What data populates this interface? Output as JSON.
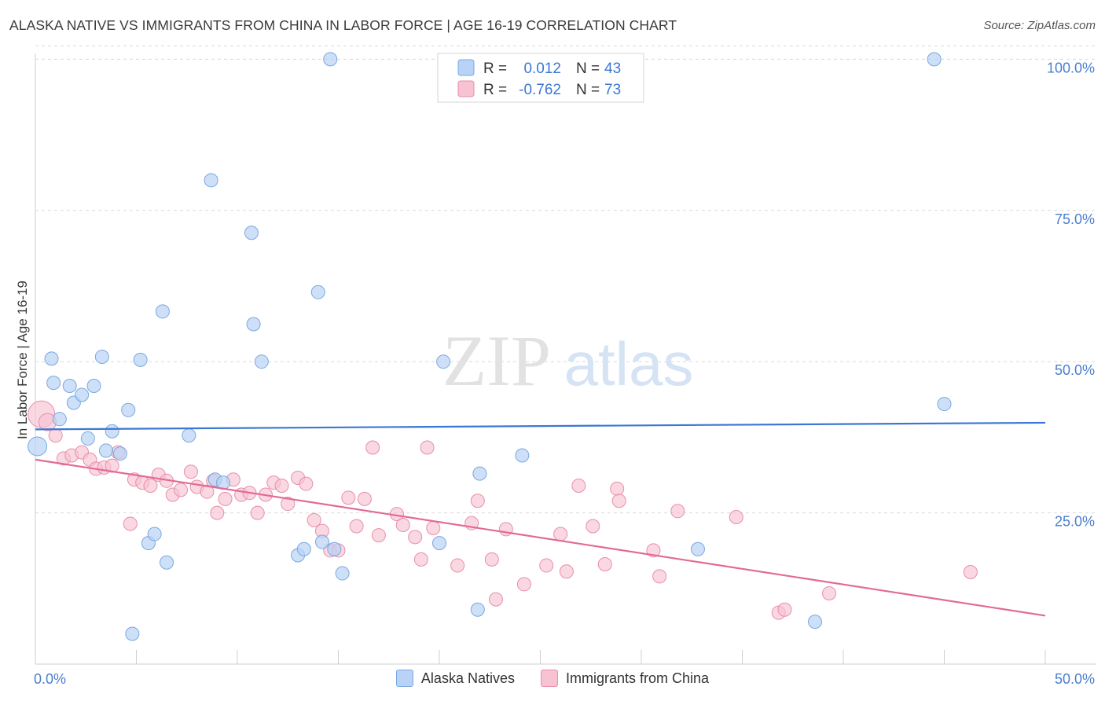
{
  "header": {
    "title": "ALASKA NATIVE VS IMMIGRANTS FROM CHINA IN LABOR FORCE | AGE 16-19 CORRELATION CHART",
    "source": "Source: ZipAtlas.com"
  },
  "watermark": {
    "zip": "ZIP",
    "atlas": "atlas"
  },
  "legend_top": {
    "rows": [
      {
        "r_label": "R =",
        "r_value": "0.012",
        "n_label": "N =",
        "n_value": "43"
      },
      {
        "r_label": "R =",
        "r_value": "-0.762",
        "n_label": "N =",
        "n_value": "73"
      }
    ]
  },
  "colors": {
    "blue_fill": "#b8d3f5",
    "blue_stroke": "#7aa8e0",
    "blue_line": "#3a78d4",
    "pink_fill": "#f7c3d3",
    "pink_stroke": "#e88eab",
    "pink_line": "#e26a95",
    "axis_text": "#4a7fcf",
    "grid": "#d9d9d9"
  },
  "chart_data": {
    "type": "scatter",
    "title": "ALASKA NATIVE VS IMMIGRANTS FROM CHINA IN LABOR FORCE | AGE 16-19 CORRELATION CHART",
    "xlabel": "",
    "ylabel": "In Labor Force | Age 16-19",
    "xlim": [
      0,
      50
    ],
    "ylim": [
      0,
      102
    ],
    "x_tick_labels": [
      "0.0%",
      "50.0%"
    ],
    "y_ticks": [
      25,
      50,
      75,
      100
    ],
    "y_tick_labels": [
      "25.0%",
      "50.0%",
      "75.0%",
      "100.0%"
    ],
    "grid": "horizontal dashed",
    "legend_position": "bottom",
    "series": [
      {
        "name": "Alaska Natives",
        "R": 0.012,
        "N": 43,
        "trend": {
          "x": [
            0,
            50
          ],
          "y": [
            38.8,
            39.9
          ]
        },
        "points": [
          [
            0.1,
            36
          ],
          [
            0.9,
            46.5
          ],
          [
            0.8,
            50.5
          ],
          [
            1.2,
            40.5
          ],
          [
            1.7,
            46
          ],
          [
            1.9,
            43.2
          ],
          [
            2.3,
            44.5
          ],
          [
            2.6,
            37.3
          ],
          [
            2.9,
            46
          ],
          [
            3.3,
            50.8
          ],
          [
            3.5,
            35.3
          ],
          [
            3.8,
            38.5
          ],
          [
            4.2,
            34.8
          ],
          [
            4.6,
            42
          ],
          [
            5.2,
            50.3
          ],
          [
            5.6,
            20
          ],
          [
            5.9,
            21.5
          ],
          [
            6.3,
            58.3
          ],
          [
            6.5,
            16.8
          ],
          [
            7.6,
            37.8
          ],
          [
            8.7,
            80
          ],
          [
            8.9,
            30.5
          ],
          [
            9.3,
            30
          ],
          [
            10.7,
            71.3
          ],
          [
            10.8,
            56.2
          ],
          [
            11.2,
            50
          ],
          [
            13,
            18
          ],
          [
            13.3,
            19
          ],
          [
            14,
            61.5
          ],
          [
            14.2,
            20.2
          ],
          [
            14.6,
            100
          ],
          [
            14.8,
            19
          ],
          [
            15.2,
            15
          ],
          [
            4.8,
            5
          ],
          [
            20,
            20
          ],
          [
            20.2,
            50
          ],
          [
            21.9,
            9
          ],
          [
            22,
            31.5
          ],
          [
            24.1,
            34.5
          ],
          [
            32.8,
            19
          ],
          [
            38.6,
            7
          ],
          [
            44.5,
            100
          ],
          [
            45,
            43
          ]
        ]
      },
      {
        "name": "Immigrants from China",
        "R": -0.762,
        "N": 73,
        "trend": {
          "x": [
            0,
            50
          ],
          "y": [
            33.8,
            8
          ]
        },
        "points": [
          [
            0.3,
            41.3
          ],
          [
            0.6,
            40
          ],
          [
            1,
            37.8
          ],
          [
            1.4,
            34
          ],
          [
            1.8,
            34.5
          ],
          [
            2.3,
            35
          ],
          [
            2.7,
            33.8
          ],
          [
            3,
            32.3
          ],
          [
            3.4,
            32.5
          ],
          [
            3.8,
            32.8
          ],
          [
            4.1,
            35
          ],
          [
            4.7,
            23.2
          ],
          [
            4.9,
            30.5
          ],
          [
            5.3,
            30
          ],
          [
            5.7,
            29.5
          ],
          [
            6.1,
            31.3
          ],
          [
            6.5,
            30.3
          ],
          [
            6.8,
            28
          ],
          [
            7.2,
            28.8
          ],
          [
            7.7,
            31.8
          ],
          [
            8,
            29.3
          ],
          [
            8.5,
            28.5
          ],
          [
            8.8,
            30.3
          ],
          [
            9,
            25
          ],
          [
            9.4,
            27.3
          ],
          [
            9.8,
            30.5
          ],
          [
            10.2,
            28
          ],
          [
            10.6,
            28.3
          ],
          [
            11,
            25
          ],
          [
            11.4,
            28
          ],
          [
            11.8,
            30
          ],
          [
            12.2,
            29.5
          ],
          [
            12.5,
            26.5
          ],
          [
            13,
            30.8
          ],
          [
            13.4,
            29.8
          ],
          [
            13.8,
            23.8
          ],
          [
            14.2,
            22
          ],
          [
            14.6,
            18.8
          ],
          [
            15,
            18.8
          ],
          [
            15.5,
            27.5
          ],
          [
            15.9,
            22.8
          ],
          [
            16.3,
            27.3
          ],
          [
            16.7,
            35.8
          ],
          [
            17,
            21.3
          ],
          [
            17.9,
            24.8
          ],
          [
            18.2,
            23
          ],
          [
            18.8,
            21
          ],
          [
            19.1,
            17.3
          ],
          [
            19.4,
            35.8
          ],
          [
            19.7,
            22.5
          ],
          [
            20.9,
            16.3
          ],
          [
            21.6,
            23.3
          ],
          [
            21.9,
            27
          ],
          [
            22.6,
            17.3
          ],
          [
            22.8,
            10.7
          ],
          [
            23.3,
            22.3
          ],
          [
            24.2,
            13.2
          ],
          [
            25.3,
            16.3
          ],
          [
            26,
            21.5
          ],
          [
            26.3,
            15.3
          ],
          [
            26.9,
            29.5
          ],
          [
            27.6,
            22.8
          ],
          [
            28.2,
            16.5
          ],
          [
            28.8,
            29
          ],
          [
            28.9,
            27
          ],
          [
            30.6,
            18.8
          ],
          [
            30.9,
            14.5
          ],
          [
            31.8,
            25.3
          ],
          [
            34.7,
            24.3
          ],
          [
            36.8,
            8.5
          ],
          [
            37.1,
            9
          ],
          [
            39.3,
            11.7
          ],
          [
            46.3,
            15.2
          ]
        ]
      }
    ]
  }
}
